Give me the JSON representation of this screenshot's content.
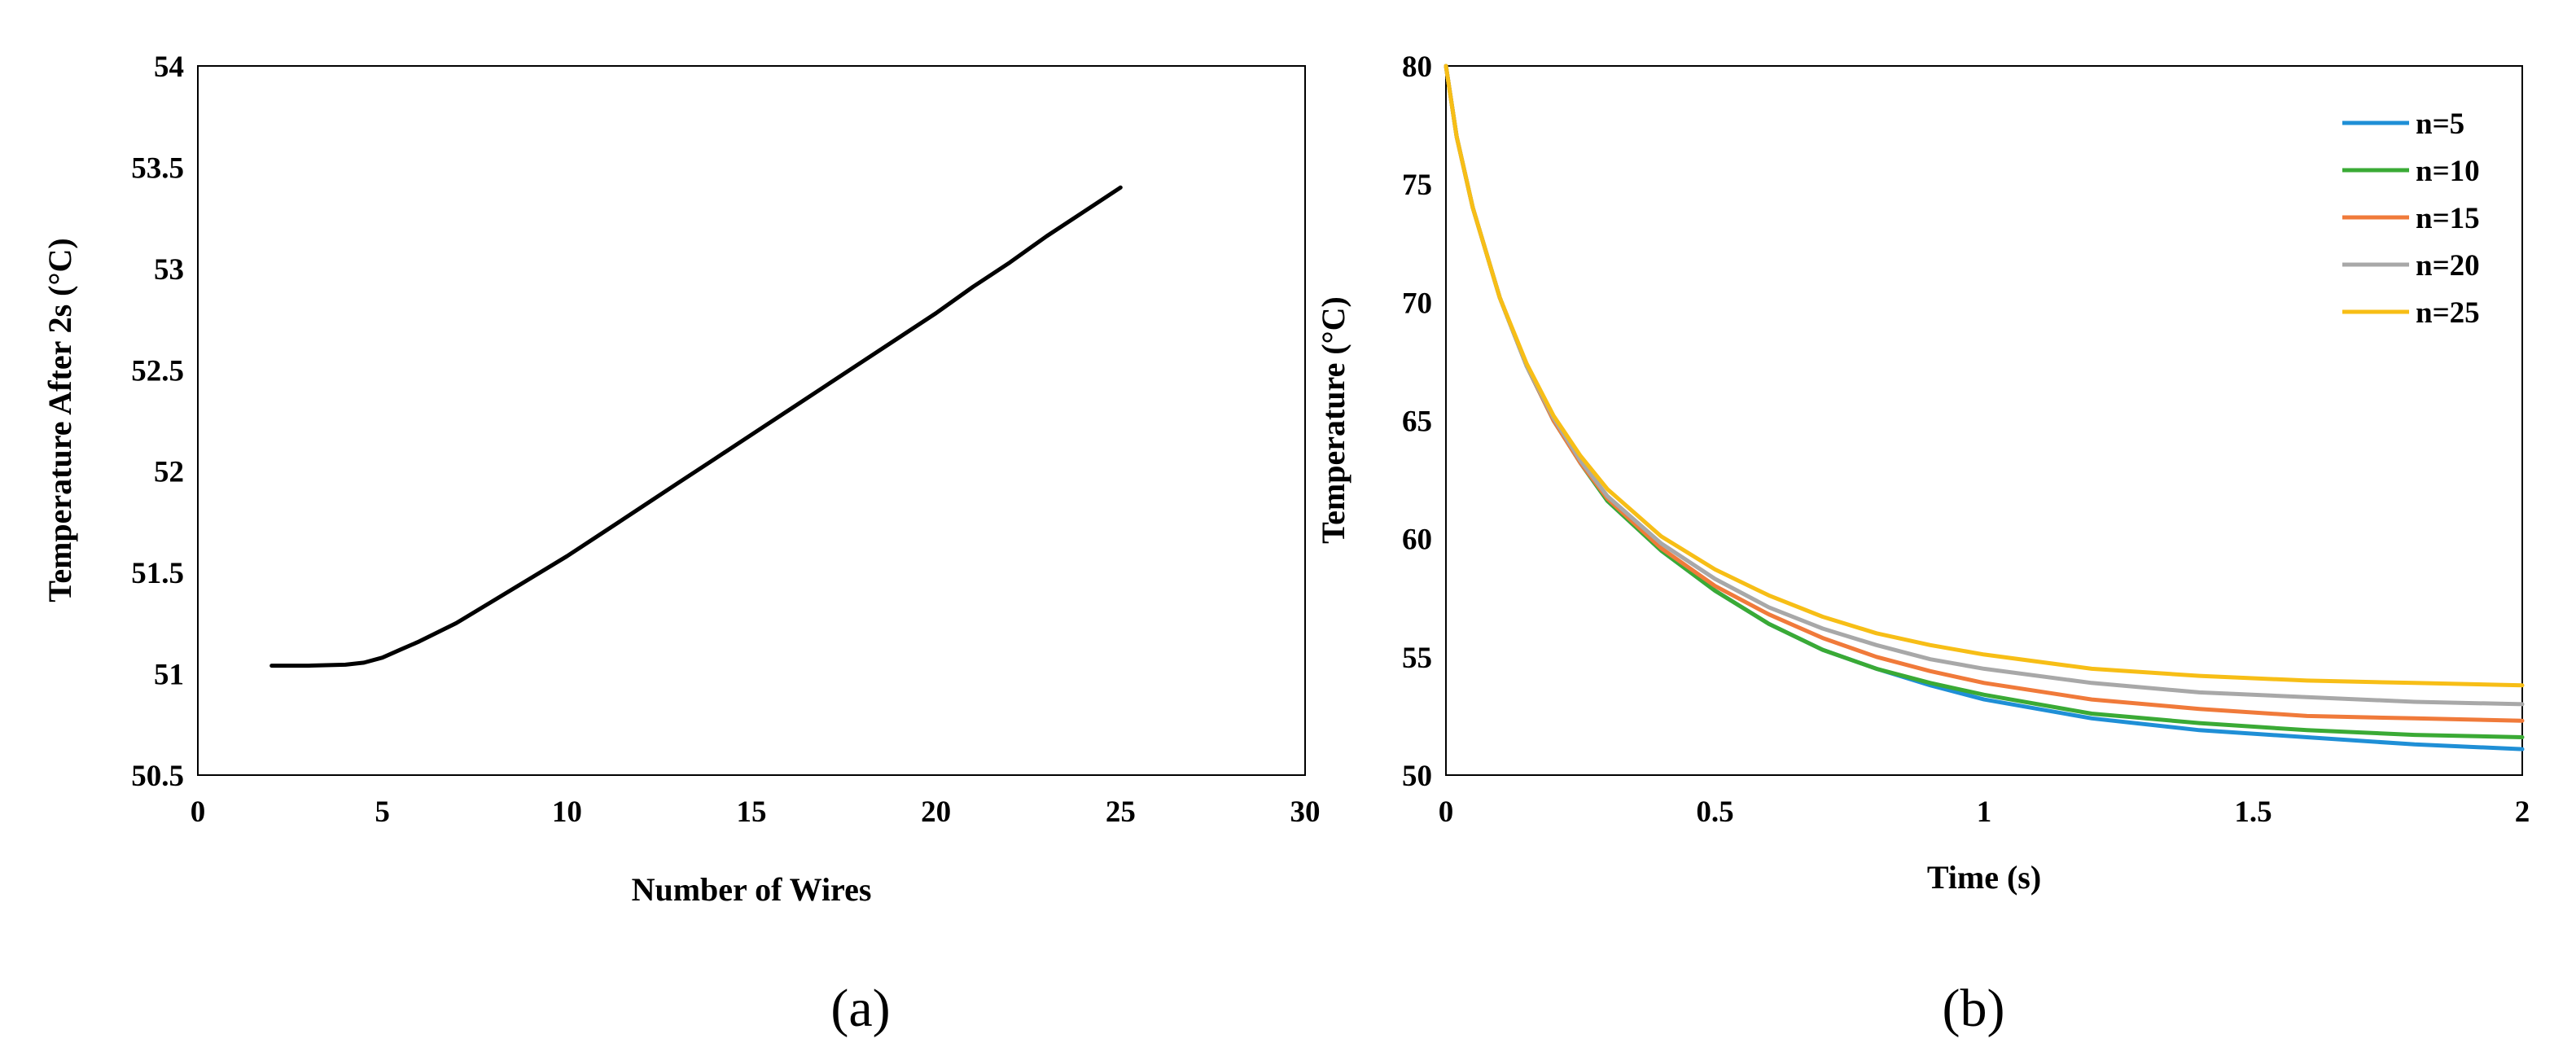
{
  "panel_labels": {
    "a": "(a)",
    "b": "(b)"
  },
  "chart_data": [
    {
      "type": "line",
      "id": "a",
      "title": "",
      "xlabel": "Number of Wires",
      "ylabel": "Temperature After 2s (°C)",
      "xlim": [
        0,
        30
      ],
      "ylim": [
        50.5,
        54
      ],
      "xticks": [
        0,
        5,
        10,
        15,
        20,
        25,
        30
      ],
      "yticks": [
        50.5,
        51,
        51.5,
        52,
        52.5,
        53,
        53.5,
        54
      ],
      "xtick_labels": [
        "0",
        "5",
        "10",
        "15",
        "20",
        "25",
        "30"
      ],
      "ytick_labels": [
        "50.5",
        "51",
        "51.5",
        "52",
        "52.5",
        "53",
        "53.5",
        "54"
      ],
      "grid": false,
      "series": [
        {
          "name": "Temperature after 2s",
          "color": "#000000",
          "x": [
            2,
            3,
            4,
            4.5,
            5,
            5.5,
            6,
            7,
            8,
            9,
            10,
            11,
            12,
            13,
            14,
            15,
            16,
            17,
            18,
            19,
            20,
            21,
            22,
            23,
            24,
            25
          ],
          "y": [
            51.04,
            51.04,
            51.045,
            51.055,
            51.08,
            51.12,
            51.16,
            51.25,
            51.36,
            51.47,
            51.58,
            51.7,
            51.82,
            51.94,
            52.06,
            52.18,
            52.3,
            52.42,
            52.54,
            52.66,
            52.78,
            52.91,
            53.03,
            53.16,
            53.28,
            53.4
          ]
        }
      ]
    },
    {
      "type": "line",
      "id": "b",
      "title": "",
      "xlabel": "Time (s)",
      "ylabel": "Temperature (°C)",
      "xlim": [
        0,
        2
      ],
      "ylim": [
        50,
        80
      ],
      "xticks": [
        0,
        0.5,
        1,
        1.5,
        2
      ],
      "yticks": [
        50,
        55,
        60,
        65,
        70,
        75,
        80
      ],
      "xtick_labels": [
        "0",
        "0.5",
        "1",
        "1.5",
        "2"
      ],
      "ytick_labels": [
        "50",
        "55",
        "60",
        "65",
        "70",
        "75",
        "80"
      ],
      "grid": false,
      "legend": "top-right",
      "time": [
        0,
        0.02,
        0.05,
        0.1,
        0.15,
        0.2,
        0.25,
        0.3,
        0.4,
        0.5,
        0.6,
        0.7,
        0.8,
        0.9,
        1.0,
        1.2,
        1.4,
        1.6,
        1.8,
        2.0
      ],
      "series": [
        {
          "name": "n=5",
          "color": "#1f8fd6",
          "values": [
            80,
            77,
            74,
            70.2,
            67.3,
            65.0,
            63.2,
            61.6,
            59.5,
            57.8,
            56.4,
            55.3,
            54.5,
            53.8,
            53.2,
            52.4,
            51.9,
            51.6,
            51.3,
            51.1
          ]
        },
        {
          "name": "n=10",
          "color": "#3aaa35",
          "values": [
            80,
            77,
            74,
            70.2,
            67.3,
            65.0,
            63.2,
            61.6,
            59.5,
            57.8,
            56.4,
            55.3,
            54.5,
            53.9,
            53.4,
            52.6,
            52.2,
            51.9,
            51.7,
            51.6
          ]
        },
        {
          "name": "n=15",
          "color": "#f07a3a",
          "values": [
            80,
            77,
            74,
            70.2,
            67.3,
            65.0,
            63.2,
            61.7,
            59.6,
            58.0,
            56.8,
            55.8,
            55.0,
            54.4,
            53.9,
            53.2,
            52.8,
            52.5,
            52.4,
            52.3
          ]
        },
        {
          "name": "n=20",
          "color": "#a8a8a8",
          "values": [
            80,
            77,
            74,
            70.2,
            67.3,
            65.1,
            63.3,
            61.8,
            59.8,
            58.3,
            57.1,
            56.2,
            55.5,
            54.9,
            54.5,
            53.9,
            53.5,
            53.3,
            53.1,
            53.0
          ]
        },
        {
          "name": "n=25",
          "color": "#f7be16",
          "values": [
            80,
            77,
            74,
            70.2,
            67.4,
            65.2,
            63.5,
            62.1,
            60.1,
            58.7,
            57.6,
            56.7,
            56.0,
            55.5,
            55.1,
            54.5,
            54.2,
            54.0,
            53.9,
            53.8
          ]
        }
      ]
    }
  ]
}
